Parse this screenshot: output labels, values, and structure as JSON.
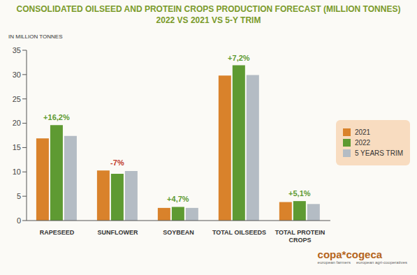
{
  "chart_data": {
    "type": "bar",
    "title": "CONSOLIDATED OILSEED AND PROTEIN CROPS PRODUCTION FORECAST (MILLION TONNES)",
    "subtitle": "2022 VS 2021 VS 5-Y TRIM",
    "y_label": "IN MILLION TONNES",
    "categories": [
      "RAPESEED",
      "SUNFLOWER",
      "SOYBEAN",
      "TOTAL OILSEEDS",
      "TOTAL PROTEIN CROPS"
    ],
    "series": [
      {
        "name": "2021",
        "color": "#d9822b",
        "values": [
          16.9,
          10.3,
          2.6,
          29.8,
          3.8
        ]
      },
      {
        "name": "2022",
        "color": "#5e9a32",
        "values": [
          19.6,
          9.6,
          2.8,
          31.9,
          4.0
        ]
      },
      {
        "name": "5 YEARS TRIM",
        "color": "#b4bcc4",
        "values": [
          17.4,
          10.2,
          2.6,
          29.9,
          3.4
        ]
      }
    ],
    "annotations": [
      "+16,2%",
      "-7%",
      "+4,7%",
      "+7,2%",
      "+5,1%"
    ],
    "ylim": [
      0,
      35
    ],
    "yticks": [
      0,
      5,
      10,
      15,
      20,
      25,
      30,
      35
    ],
    "grid": false,
    "legend": "right",
    "logo": [
      "copa*cogeca",
      "european farmers",
      "european agri-cooperatives"
    ]
  }
}
